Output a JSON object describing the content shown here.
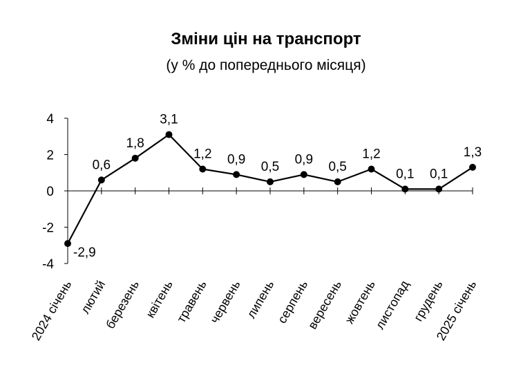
{
  "title": "Зміни цін на транспорт",
  "subtitle": "(у % до попереднього місяця)",
  "chart_data": {
    "type": "line",
    "title": "Зміни цін на транспорт",
    "subtitle": "(у % до попереднього місяця)",
    "categories": [
      "2024 січень",
      "лютий",
      "березень",
      "квітень",
      "травень",
      "червень",
      "липень",
      "серпень",
      "вересень",
      "жовтень",
      "листопад",
      "грудень",
      "2025 січень"
    ],
    "series": [
      {
        "values": [
          -2.9,
          0.6,
          1.8,
          3.1,
          1.2,
          0.9,
          0.5,
          0.9,
          0.5,
          1.2,
          0.1,
          0.1,
          1.3
        ],
        "labels": [
          "-2,9",
          "0,6",
          "1,8",
          "3,1",
          "1,2",
          "0,9",
          "0,5",
          "0,9",
          "0,5",
          "1,2",
          "0,1",
          "0,1",
          "1,3"
        ],
        "color": "#000000"
      }
    ],
    "yticks": [
      4,
      2,
      0,
      -2,
      -4
    ],
    "ylim": [
      -4,
      4
    ],
    "grid": false,
    "legend": "none",
    "xlabel": "",
    "ylabel": ""
  }
}
